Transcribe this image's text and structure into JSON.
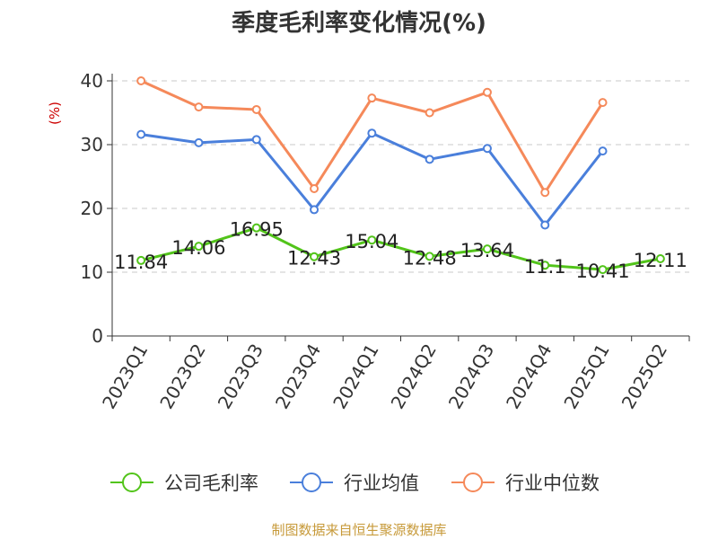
{
  "chart_data": {
    "type": "line",
    "title": "季度毛利率变化情况(%)",
    "ylabel": "(%)",
    "categories": [
      "2023Q1",
      "2023Q2",
      "2023Q3",
      "2023Q4",
      "2024Q1",
      "2024Q2",
      "2024Q3",
      "2024Q4",
      "2025Q1",
      "2025Q2"
    ],
    "ylim": [
      0,
      40
    ],
    "yticks": [
      0,
      10,
      20,
      30,
      40
    ],
    "grid": true,
    "legend_position": "bottom",
    "series": [
      {
        "name": "公司毛利率",
        "color": "#52c41a",
        "values": [
          11.84,
          14.06,
          16.95,
          12.43,
          15.04,
          12.48,
          13.64,
          11.1,
          10.41,
          12.11
        ],
        "labels": [
          "11.84",
          "14.06",
          "16.95",
          "12.43",
          "15.04",
          "12.48",
          "13.64",
          "11.1",
          "10.41",
          "12.11"
        ]
      },
      {
        "name": "行业均值",
        "color": "#4a7fdb",
        "values": [
          31.6,
          30.3,
          30.8,
          19.8,
          31.8,
          27.7,
          29.4,
          17.4,
          29.0,
          null
        ]
      },
      {
        "name": "行业中位数",
        "color": "#f5895a",
        "values": [
          40.0,
          35.9,
          35.5,
          23.1,
          37.3,
          35.0,
          38.2,
          22.5,
          36.6,
          null
        ]
      }
    ]
  },
  "footer": "制图数据来自恒生聚源数据库"
}
